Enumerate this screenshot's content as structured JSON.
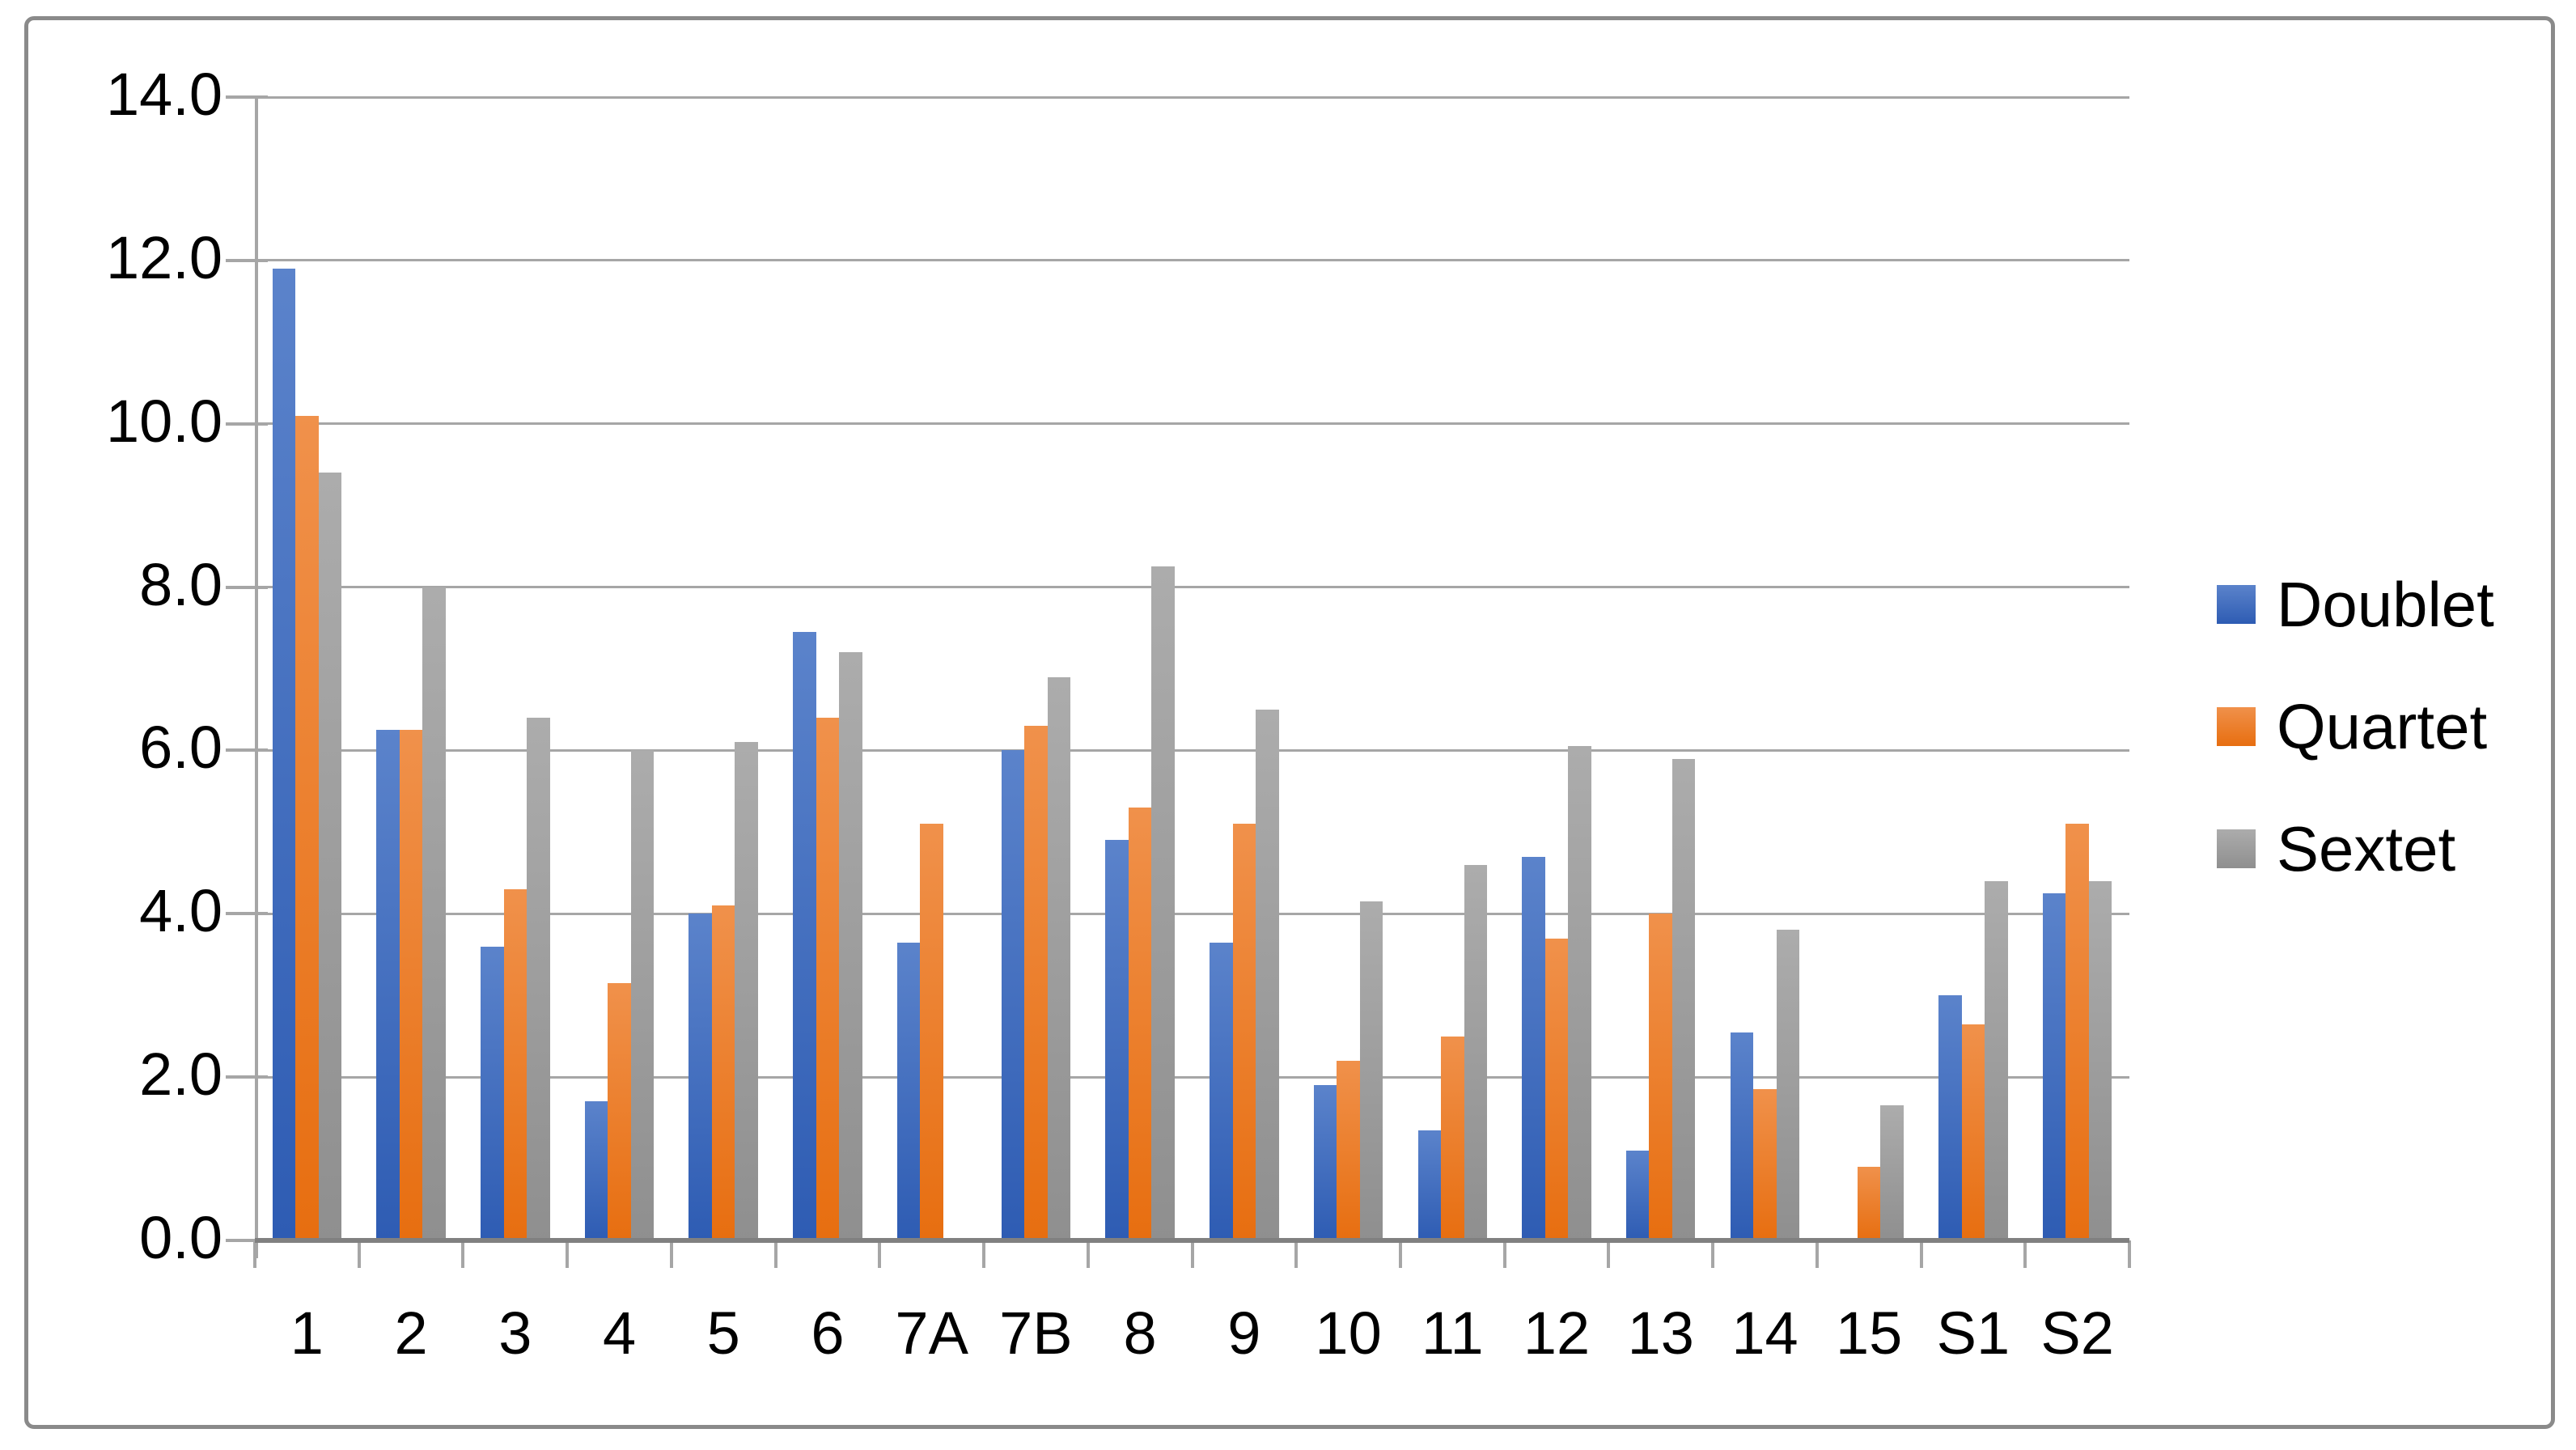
{
  "chart_data": {
    "type": "bar",
    "title": "",
    "xlabel": "",
    "ylabel": "",
    "categories": [
      "1",
      "2",
      "3",
      "4",
      "5",
      "6",
      "7A",
      "7B",
      "8",
      "9",
      "10",
      "11",
      "12",
      "13",
      "14",
      "15",
      "S1",
      "S2"
    ],
    "series": [
      {
        "name": "Doublet",
        "color": "#4472C4",
        "color_top": "#5B83CB",
        "color_bottom": "#2E5CB3",
        "values": [
          11.9,
          6.25,
          3.6,
          1.7,
          4.0,
          7.45,
          3.65,
          6.0,
          4.9,
          3.65,
          1.9,
          1.35,
          4.7,
          1.1,
          2.55,
          0,
          3.0,
          4.25
        ]
      },
      {
        "name": "Quartet",
        "color": "#ED7D31",
        "color_top": "#F0914B",
        "color_bottom": "#E76E10",
        "values": [
          10.1,
          6.25,
          4.3,
          3.15,
          4.1,
          6.4,
          5.1,
          6.3,
          5.3,
          5.1,
          2.2,
          2.5,
          3.7,
          4.0,
          1.85,
          0.9,
          2.65,
          5.1
        ]
      },
      {
        "name": "Sextet",
        "color": "#A5A5A5",
        "color_top": "#ACACAC",
        "color_bottom": "#8F8F8F",
        "values": [
          9.4,
          8.0,
          6.4,
          6.0,
          6.1,
          7.2,
          0,
          6.9,
          8.25,
          6.5,
          4.15,
          4.6,
          6.05,
          5.9,
          3.8,
          1.65,
          4.4,
          4.4
        ]
      }
    ],
    "ylim": [
      0,
      14
    ],
    "ytick_step": 2,
    "ytick_labels": [
      "0.0",
      "2.0",
      "4.0",
      "6.0",
      "8.0",
      "10.0",
      "12.0",
      "14.0"
    ],
    "grid": true,
    "legend_position": "right",
    "axis_color": "#A6A6A6",
    "baseline_color": "#808080",
    "frame_color": "#8A8A8A",
    "text_color": "#000000"
  }
}
